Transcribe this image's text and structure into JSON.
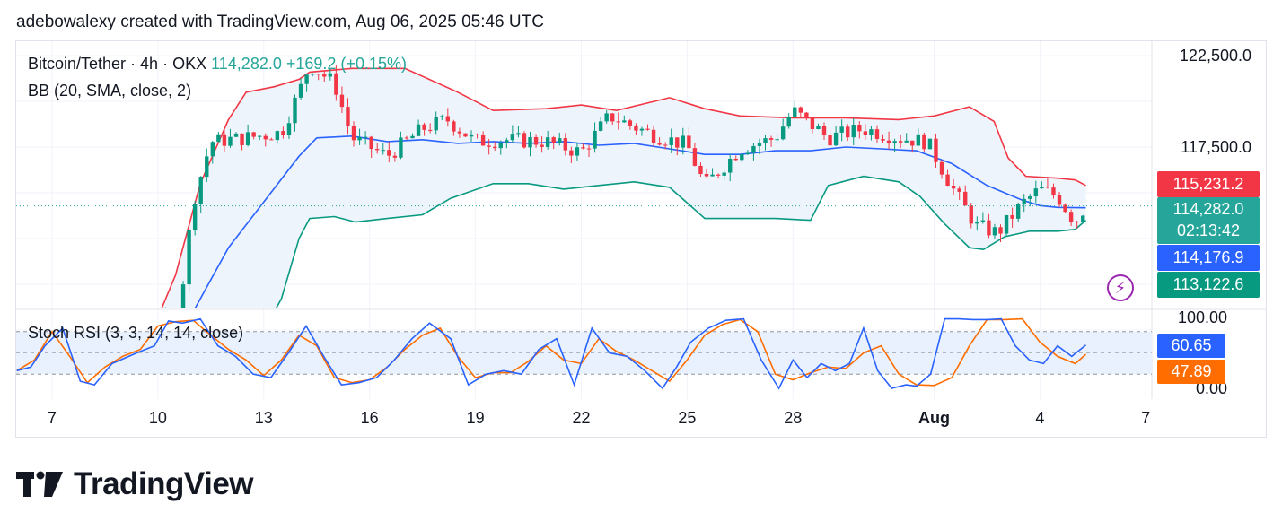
{
  "header": {
    "attribution": "adebowalexy created with TradingView.com, Aug 06, 2025 05:46 UTC"
  },
  "legend": {
    "symbol": "Bitcoin/Tether · 4h · OKX",
    "last": "114,282.0",
    "change": "+169.2 (+0.15%)",
    "indicator": "BB (20, SMA, close, 2)",
    "oscillator": "Stoch RSI (3, 3, 14, 14, close)"
  },
  "price_labels": {
    "bb_upper": "115,231.2",
    "last_price": "114,282.0",
    "countdown": "02:13:42",
    "bb_basis": "114,176.9",
    "bb_lower": "113,122.6"
  },
  "osc_labels": {
    "k": "60.65",
    "d": "47.89"
  },
  "footer": {
    "logo_text": "TradingView"
  },
  "colors": {
    "up": "#089981",
    "down": "#f23645",
    "bb_upper": "#f23645",
    "bb_basis": "#2962ff",
    "bb_lower": "#089981",
    "band_fill": "#eef4fb",
    "stoch_k": "#2962ff",
    "stoch_d": "#ff6d00",
    "last_price_bg": "#26a69a"
  },
  "chart_data": [
    {
      "type": "candlestick",
      "title": "Bitcoin/Tether · 4h · OKX",
      "y_ticks": [
        "122,500.0",
        "117,500.0"
      ],
      "y_tick_values": [
        122500,
        117500
      ],
      "x_ticks": [
        "7",
        "10",
        "13",
        "16",
        "19",
        "22",
        "25",
        "28",
        "Aug",
        "4",
        "7"
      ],
      "x_tick_days": [
        7,
        10,
        13,
        16,
        19,
        22,
        25,
        28,
        32,
        35,
        38
      ],
      "last_price": 114282.0,
      "bb_upper_last": 115231.2,
      "bb_basis_last": 114176.9,
      "bb_lower_last": 113122.6,
      "series": [
        {
          "name": "BB upper",
          "day": [
            6.3,
            7.5,
            9.0,
            9.7,
            10.5,
            11.2,
            12.0,
            12.5,
            13.3,
            14.0,
            14.3,
            15.5,
            17.0,
            18.5,
            19.5,
            21.0,
            22.0,
            23.0,
            24.5,
            25.5,
            26.5,
            28.0,
            29.5,
            31.0,
            32.0,
            33.0,
            33.7,
            34.1,
            34.6,
            35.5,
            36.0,
            36.3
          ],
          "value": [
            106400,
            106000,
            106100,
            106800,
            110500,
            115500,
            119000,
            120500,
            120800,
            121200,
            121600,
            121800,
            121800,
            120500,
            119500,
            119600,
            119800,
            119500,
            120200,
            119600,
            119200,
            119100,
            119100,
            119000,
            119200,
            119700,
            118900,
            116900,
            115900,
            115800,
            115700,
            115400
          ]
        },
        {
          "name": "BB basis",
          "day": [
            9.5,
            10.5,
            11.0,
            12.0,
            13.0,
            14.0,
            14.5,
            15.5,
            16.5,
            17.5,
            18.5,
            19.5,
            20.5,
            21.5,
            22.5,
            23.5,
            24.5,
            25.5,
            26.5,
            27.5,
            28.5,
            29.5,
            30.5,
            31.5,
            32.5,
            33.5,
            34.5,
            35.0,
            35.5,
            36.3
          ],
          "value": [
            104500,
            106000,
            108500,
            112000,
            114500,
            117000,
            118000,
            118100,
            117800,
            117900,
            117700,
            117800,
            117700,
            117800,
            117600,
            117700,
            117400,
            117100,
            117100,
            117300,
            117300,
            117500,
            117400,
            117300,
            116600,
            115400,
            114600,
            114300,
            114200,
            114180
          ]
        },
        {
          "name": "BB lower",
          "day": [
            12.0,
            12.8,
            13.5,
            14.0,
            14.3,
            15.0,
            15.6,
            16.5,
            17.5,
            18.3,
            19.5,
            20.5,
            21.5,
            22.5,
            23.5,
            24.5,
            25.5,
            26.5,
            27.5,
            28.5,
            29.0,
            30.0,
            31.0,
            31.6,
            32.3,
            33.0,
            33.4,
            34.0,
            34.7,
            35.5,
            36.0,
            36.3
          ],
          "value": [
            104300,
            106800,
            109200,
            112500,
            113600,
            113700,
            113400,
            113600,
            113800,
            114700,
            115500,
            115500,
            115200,
            115400,
            115600,
            115300,
            113600,
            113600,
            113600,
            113500,
            115400,
            115900,
            115600,
            114800,
            113300,
            112000,
            111900,
            112600,
            112900,
            112900,
            113000,
            113500
          ]
        },
        {
          "name": "Stoch RSI K",
          "day": [
            6.0,
            6.4,
            6.8,
            7.3,
            7.8,
            8.2,
            8.7,
            9.4,
            9.9,
            10.3,
            10.7,
            11.2,
            11.7,
            12.2,
            12.7,
            13.2,
            13.7,
            14.2,
            14.7,
            15.2,
            15.7,
            16.2,
            16.7,
            17.2,
            17.7,
            18.3,
            18.8,
            19.3,
            19.8,
            20.3,
            20.8,
            21.3,
            21.8,
            22.3,
            22.8,
            23.3,
            23.8,
            24.3,
            24.7,
            25.1,
            25.6,
            26.1,
            26.6,
            27.1,
            27.6,
            28.0,
            28.4,
            28.8,
            29.2,
            29.6,
            30.0,
            30.4,
            30.8,
            31.2,
            31.5,
            31.9,
            32.3,
            32.7,
            33.1,
            33.5,
            33.9,
            34.3,
            34.7,
            35.1,
            35.5,
            35.9,
            36.3
          ],
          "value": [
            25,
            30,
            60,
            85,
            10,
            5,
            35,
            50,
            60,
            95,
            92,
            98,
            60,
            45,
            20,
            15,
            50,
            88,
            45,
            5,
            8,
            15,
            40,
            70,
            92,
            70,
            5,
            20,
            25,
            20,
            55,
            70,
            5,
            85,
            50,
            45,
            25,
            0,
            30,
            65,
            85,
            96,
            98,
            40,
            0,
            40,
            15,
            35,
            25,
            35,
            85,
            25,
            0,
            5,
            3,
            20,
            98,
            98,
            97,
            97,
            98,
            60,
            40,
            35,
            60,
            45,
            61
          ]
        },
        {
          "name": "Stoch RSI D",
          "day": [
            6.0,
            6.5,
            7.0,
            7.5,
            8.0,
            8.5,
            9.0,
            9.5,
            10.0,
            10.5,
            11.0,
            11.5,
            12.0,
            12.5,
            13.0,
            13.5,
            14.0,
            14.5,
            15.0,
            15.5,
            16.0,
            16.5,
            17.0,
            17.5,
            18.0,
            18.5,
            19.0,
            19.5,
            20.0,
            20.5,
            21.0,
            21.5,
            22.0,
            22.5,
            23.0,
            23.5,
            24.0,
            24.5,
            25.0,
            25.5,
            26.0,
            26.5,
            27.0,
            27.5,
            28.0,
            28.5,
            29.0,
            29.5,
            30.0,
            30.5,
            31.0,
            31.5,
            32.0,
            32.5,
            33.0,
            33.5,
            34.0,
            34.5,
            35.0,
            35.5,
            36.0,
            36.3
          ],
          "value": [
            25,
            40,
            80,
            45,
            8,
            30,
            45,
            55,
            88,
            94,
            96,
            75,
            55,
            40,
            18,
            40,
            75,
            60,
            15,
            8,
            12,
            30,
            55,
            75,
            85,
            45,
            15,
            22,
            22,
            38,
            60,
            40,
            35,
            70,
            52,
            40,
            25,
            10,
            40,
            75,
            90,
            97,
            80,
            20,
            12,
            22,
            30,
            28,
            50,
            60,
            20,
            5,
            4,
            15,
            60,
            97,
            97,
            98,
            65,
            45,
            35,
            48
          ]
        }
      ]
    }
  ]
}
